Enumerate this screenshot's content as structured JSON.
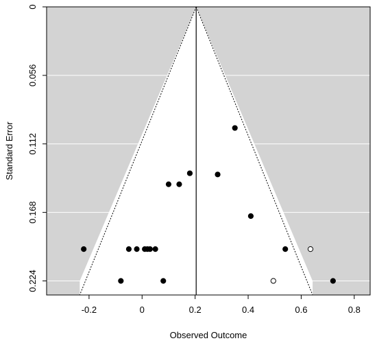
{
  "chart_data": {
    "type": "scatter",
    "subtype": "funnel",
    "xlabel": "Observed Outcome",
    "ylabel": "Standard Error",
    "xlim": [
      -0.36,
      0.86
    ],
    "ylim": [
      0,
      0.2355
    ],
    "y_reversed": true,
    "x_ticks": [
      -0.2,
      0,
      0.2,
      0.4,
      0.6,
      0.8
    ],
    "x_tick_labels": [
      "-0.2",
      "0",
      "0.2",
      "0.4",
      "0.6",
      "0.8"
    ],
    "y_ticks": [
      0,
      0.056,
      0.112,
      0.168,
      0.224
    ],
    "y_tick_labels": [
      "0",
      "0.056",
      "0.112",
      "0.168",
      "0.224"
    ],
    "center_estimate": 0.204,
    "funnel_se_max": 0.224,
    "funnel_z": 1.96,
    "grid": true,
    "background_color": "#d3d3d3",
    "funnel_fill_color": "#ffffff",
    "points": [
      {
        "x": 0.35,
        "y": 0.099,
        "filled": true
      },
      {
        "x": 0.18,
        "y": 0.136,
        "filled": true
      },
      {
        "x": 0.285,
        "y": 0.137,
        "filled": true
      },
      {
        "x": 0.1,
        "y": 0.145,
        "filled": true
      },
      {
        "x": 0.14,
        "y": 0.145,
        "filled": true
      },
      {
        "x": 0.41,
        "y": 0.171,
        "filled": true
      },
      {
        "x": -0.22,
        "y": 0.198,
        "filled": true
      },
      {
        "x": -0.05,
        "y": 0.198,
        "filled": true
      },
      {
        "x": -0.02,
        "y": 0.198,
        "filled": true
      },
      {
        "x": 0.01,
        "y": 0.198,
        "filled": true
      },
      {
        "x": 0.02,
        "y": 0.198,
        "filled": true
      },
      {
        "x": 0.03,
        "y": 0.198,
        "filled": true
      },
      {
        "x": 0.05,
        "y": 0.198,
        "filled": true
      },
      {
        "x": 0.54,
        "y": 0.198,
        "filled": true
      },
      {
        "x": 0.635,
        "y": 0.198,
        "filled": false
      },
      {
        "x": -0.08,
        "y": 0.224,
        "filled": true
      },
      {
        "x": 0.08,
        "y": 0.224,
        "filled": true
      },
      {
        "x": 0.495,
        "y": 0.224,
        "filled": false
      },
      {
        "x": 0.72,
        "y": 0.224,
        "filled": true
      }
    ]
  }
}
